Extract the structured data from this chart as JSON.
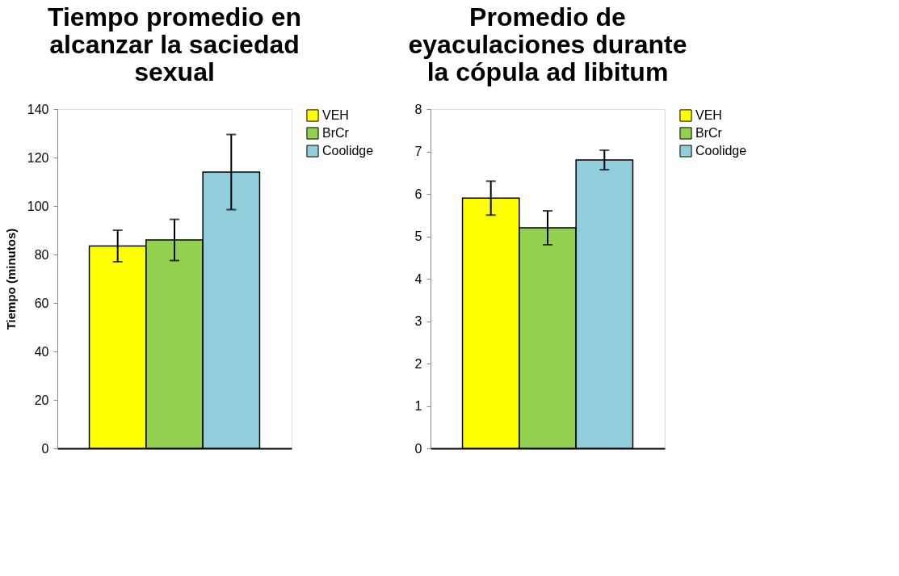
{
  "chart_data": [
    {
      "type": "bar",
      "title": "Tiempo promedio en alcanzar la saciedad sexual",
      "ylabel": "Tiempo (minutos)",
      "categories": [
        null
      ],
      "ylim": [
        0,
        140
      ],
      "yticks": [
        0,
        20,
        40,
        60,
        80,
        100,
        120,
        140
      ],
      "legend": "right",
      "tick_labels": "y",
      "series": [
        {
          "name": "VEH",
          "color": "#ffff00",
          "values": [
            83.5
          ],
          "errors": [
            [
              77,
              90
            ]
          ]
        },
        {
          "name": "BrCr",
          "color": "#92d050",
          "values": [
            86
          ],
          "errors": [
            [
              77.5,
              94.5
            ]
          ]
        },
        {
          "name": "Coolidge",
          "color": "#92cddc",
          "values": [
            114
          ],
          "errors": [
            [
              98.5,
              129.5
            ]
          ]
        }
      ]
    },
    {
      "type": "bar",
      "title": "Promedio de eyaculaciones durante la cópula ad libitum",
      "categories": [
        null
      ],
      "ylim": [
        0,
        8
      ],
      "yticks": [
        0,
        1,
        2,
        3,
        4,
        5,
        6,
        7,
        8
      ],
      "legend": "right",
      "tick_labels": "y",
      "series": [
        {
          "name": "VEH",
          "color": "#ffff00",
          "values": [
            5.9
          ],
          "errors": [
            [
              5.5,
              6.3
            ]
          ]
        },
        {
          "name": "BrCr",
          "color": "#92d050",
          "values": [
            5.2
          ],
          "errors": [
            [
              4.8,
              5.6
            ]
          ]
        },
        {
          "name": "Coolidge",
          "color": "#92cddc",
          "values": [
            6.8
          ],
          "errors": [
            [
              6.57,
              7.03
            ]
          ]
        }
      ]
    }
  ]
}
